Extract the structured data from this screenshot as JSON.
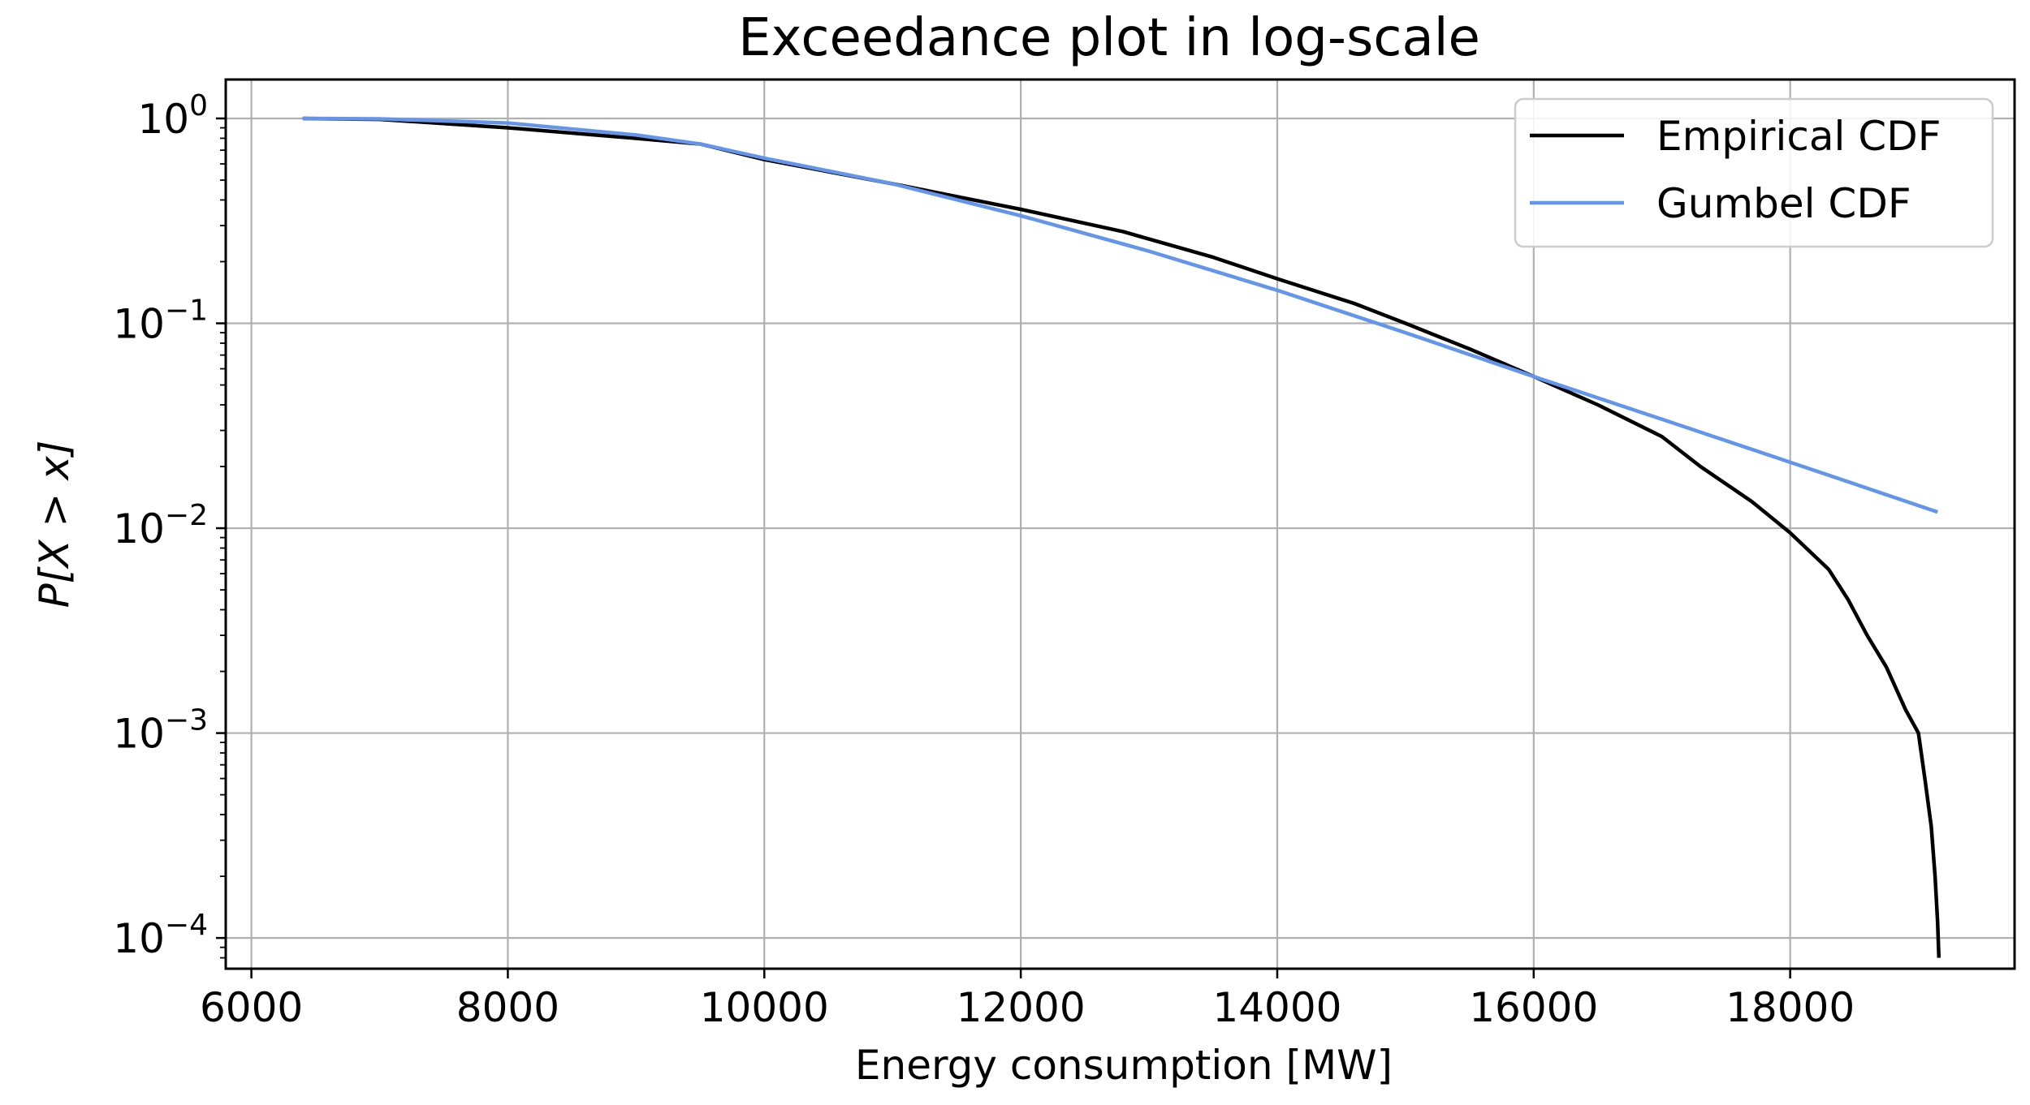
{
  "chart_data": {
    "type": "line",
    "title": "Exceedance plot in log-scale",
    "xlabel": "Energy consumption [MW]",
    "ylabel": "P[X > x]",
    "xlim": [
      5800,
      19750
    ],
    "ylim_log10": [
      -4.15,
      0.19
    ],
    "yscale": "log",
    "grid": true,
    "legend_position": "top-right",
    "xticks": [
      6000,
      8000,
      10000,
      12000,
      14000,
      16000,
      18000
    ],
    "xtick_labels": [
      "6000",
      "8000",
      "10000",
      "12000",
      "14000",
      "16000",
      "18000"
    ],
    "yticks": [
      {
        "base": "10",
        "exp": "0",
        "value": 1
      },
      {
        "base": "10",
        "exp": "−1",
        "value": 0.1
      },
      {
        "base": "10",
        "exp": "−2",
        "value": 0.01
      },
      {
        "base": "10",
        "exp": "−3",
        "value": 0.001
      },
      {
        "base": "10",
        "exp": "−4",
        "value": 0.0001
      }
    ],
    "series": [
      {
        "name": "Empirical CDF",
        "color": "#000000",
        "x": [
          6400,
          7000,
          8000,
          9000,
          9500,
          10000,
          11000,
          12000,
          12800,
          13500,
          14000,
          14600,
          15000,
          15500,
          16000,
          16500,
          17000,
          17300,
          17700,
          18000,
          18300,
          18450,
          18600,
          18750,
          18900,
          19000,
          19050,
          19100,
          19130,
          19150,
          19160
        ],
        "y": [
          1.0,
          0.99,
          0.9,
          0.8,
          0.75,
          0.63,
          0.48,
          0.36,
          0.28,
          0.21,
          0.165,
          0.125,
          0.1,
          0.075,
          0.055,
          0.04,
          0.028,
          0.02,
          0.0135,
          0.0095,
          0.0063,
          0.0045,
          0.003,
          0.0021,
          0.0013,
          0.001,
          0.0006,
          0.00035,
          0.0002,
          0.00012,
          8e-05
        ]
      },
      {
        "name": "Gumbel CDF",
        "color": "#6495ED",
        "x": [
          6400,
          7000,
          8000,
          9000,
          9500,
          10000,
          11000,
          12000,
          13000,
          14000,
          15000,
          16000,
          17000,
          18000,
          19150
        ],
        "y": [
          1.0,
          0.995,
          0.95,
          0.83,
          0.75,
          0.64,
          0.48,
          0.335,
          0.225,
          0.145,
          0.09,
          0.055,
          0.034,
          0.021,
          0.012
        ]
      }
    ]
  }
}
